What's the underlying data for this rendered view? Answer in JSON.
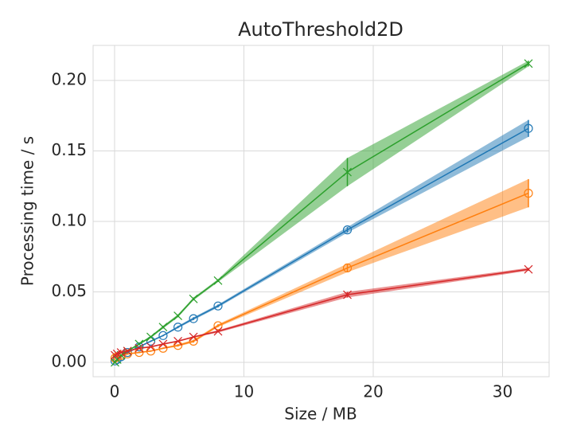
{
  "chart_data": {
    "type": "line",
    "title": "AutoThreshold2D",
    "x_label": "Size / MB",
    "y_label": "Processing time / s",
    "x": [
      0.03,
      0.2,
      0.5,
      1,
      1.9,
      2.8,
      3.75,
      4.9,
      6.1,
      8,
      18,
      32
    ],
    "series": [
      {
        "color": "#1f77b4",
        "marker": "circle",
        "values": [
          0.001,
          0.002,
          0.004,
          0.007,
          0.011,
          0.015,
          0.019,
          0.025,
          0.031,
          0.04,
          0.094,
          0.166
        ],
        "errors": [
          0.0005,
          0.0005,
          0.0005,
          0.0005,
          0.0005,
          0.0005,
          0.0005,
          0.0008,
          0.001,
          0.001,
          0.002,
          0.006
        ]
      },
      {
        "color": "#ff7f0e",
        "marker": "circle",
        "values": [
          0.003,
          0.004,
          0.005,
          0.006,
          0.007,
          0.008,
          0.01,
          0.012,
          0.015,
          0.026,
          0.067,
          0.12
        ],
        "errors": [
          0.0005,
          0.0005,
          0.0005,
          0.0005,
          0.0005,
          0.0005,
          0.0005,
          0.0008,
          0.001,
          0.001,
          0.003,
          0.01
        ]
      },
      {
        "color": "#2ca02c",
        "marker": "x",
        "values": [
          0.0,
          0.002,
          0.005,
          0.008,
          0.013,
          0.018,
          0.025,
          0.033,
          0.045,
          0.058,
          0.135,
          0.212
        ],
        "errors": [
          0.0005,
          0.0005,
          0.0005,
          0.0005,
          0.0005,
          0.0008,
          0.001,
          0.001,
          0.001,
          0.001,
          0.01,
          0.002
        ]
      },
      {
        "color": "#d62728",
        "marker": "x",
        "values": [
          0.005,
          0.006,
          0.007,
          0.008,
          0.01,
          0.011,
          0.013,
          0.015,
          0.018,
          0.022,
          0.048,
          0.066
        ],
        "errors": [
          0.0005,
          0.0005,
          0.0005,
          0.0005,
          0.0005,
          0.0005,
          0.0005,
          0.0005,
          0.0005,
          0.0008,
          0.002,
          0.001
        ]
      }
    ],
    "xlim": [
      -1.66,
      33.6
    ],
    "ylim": [
      -0.0102,
      0.2249
    ],
    "xticks": [
      0,
      10,
      20,
      30
    ],
    "yticks": [
      {
        "value": 0,
        "label": "0.00"
      },
      0.05,
      {
        "value": 0.1,
        "label": "0.10"
      },
      0.15,
      {
        "value": 0.2,
        "label": "0.20"
      }
    ],
    "grid": true
  }
}
